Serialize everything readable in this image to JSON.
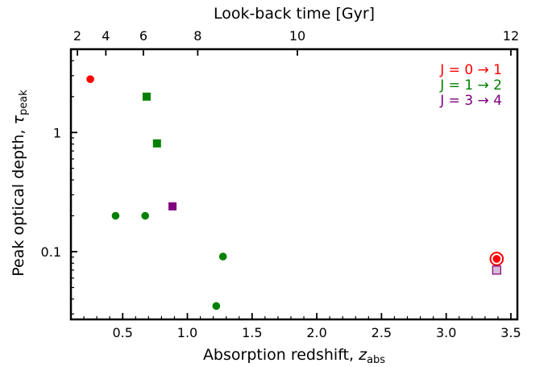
{
  "chart_data": {
    "type": "scatter",
    "title": "",
    "xlabel": "Absorption redshift, ",
    "xlabel_symbol": "z",
    "xlabel_subscript": "abs",
    "ylabel": "Peak optical depth, ",
    "ylabel_symbol": "τ",
    "ylabel_subscript": "peak",
    "top_xlabel": "Look-back time [Gyr]",
    "xlim": [
      0.1,
      3.55
    ],
    "ylim": [
      0.027,
      5.0
    ],
    "yscale": "log",
    "x_ticks": [
      0.5,
      1.0,
      1.5,
      2.0,
      2.5,
      3.0,
      3.5
    ],
    "x_tick_labels": [
      "0.5",
      "1.0",
      "1.5",
      "2.0",
      "2.5",
      "3.0",
      "3.5"
    ],
    "y_ticks": [
      0.1,
      1
    ],
    "y_tick_labels": [
      "0.1",
      "1"
    ],
    "top_ticks": [
      {
        "label": "2",
        "z": 0.15
      },
      {
        "label": "4",
        "z": 0.37
      },
      {
        "label": "6",
        "z": 0.66
      },
      {
        "label": "8",
        "z": 1.08
      },
      {
        "label": "10",
        "z": 1.85
      },
      {
        "label": "12",
        "z": 3.5
      }
    ],
    "legend_position": "top-right",
    "legend": [
      {
        "label": "J = 0 → 1",
        "color": "#ff0000"
      },
      {
        "label": "J = 1 → 2",
        "color": "#008000"
      },
      {
        "label": "J = 3 → 4",
        "color": "#800080"
      }
    ],
    "series": [
      {
        "name": "J = 0 → 1",
        "color": "#ff0000",
        "points": [
          {
            "x": 0.25,
            "y": 2.8,
            "marker": "circle"
          },
          {
            "x": 3.39,
            "y": 0.087,
            "marker": "circle-ringed"
          }
        ]
      },
      {
        "name": "J = 1 → 2",
        "color": "#008000",
        "points": [
          {
            "x": 0.685,
            "y": 2.0,
            "marker": "square"
          },
          {
            "x": 0.765,
            "y": 0.81,
            "marker": "square"
          },
          {
            "x": 0.445,
            "y": 0.2,
            "marker": "circle"
          },
          {
            "x": 0.674,
            "y": 0.2,
            "marker": "circle"
          },
          {
            "x": 1.275,
            "y": 0.091,
            "marker": "circle"
          },
          {
            "x": 1.223,
            "y": 0.035,
            "marker": "circle"
          }
        ]
      },
      {
        "name": "J = 3 → 4",
        "color": "#800080",
        "points": [
          {
            "x": 0.885,
            "y": 0.24,
            "marker": "square"
          },
          {
            "x": 3.39,
            "y": 0.07,
            "marker": "square-open"
          }
        ]
      }
    ]
  }
}
